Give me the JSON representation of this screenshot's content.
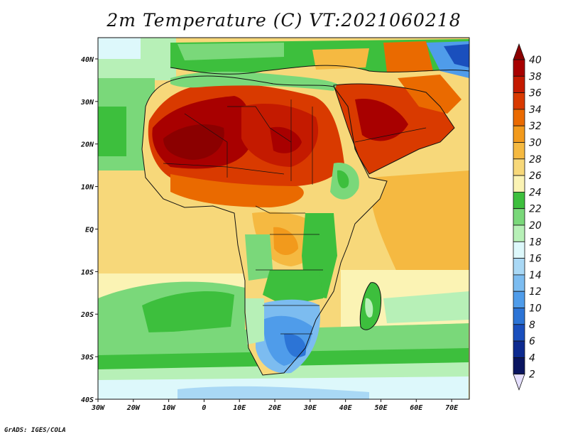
{
  "title": "2m Temperature (C) VT:2021060218",
  "credit": "GrADS: IGES/COLA",
  "map": {
    "variable": "2m Temperature",
    "units": "C",
    "valid_time": "2021060218",
    "lon_range": [
      -30,
      75
    ],
    "lat_range": [
      -40,
      45
    ],
    "lon_ticks": [
      "30W",
      "20W",
      "10W",
      "0",
      "10E",
      "20E",
      "30E",
      "40E",
      "50E",
      "60E",
      "70E"
    ],
    "lat_ticks": [
      "40N",
      "30N",
      "20N",
      "10N",
      "EQ",
      "10S",
      "20S",
      "30S",
      "40S"
    ]
  },
  "colorbar": {
    "labels": [
      "40",
      "38",
      "36",
      "34",
      "32",
      "30",
      "28",
      "26",
      "24",
      "22",
      "20",
      "18",
      "16",
      "14",
      "12",
      "10",
      "8",
      "6",
      "4",
      "2"
    ],
    "colors": [
      "#8b0000",
      "#a80000",
      "#c41a00",
      "#d93a00",
      "#ea6a00",
      "#f29a1c",
      "#f5b941",
      "#f7d87a",
      "#fbf3b4",
      "#3dbf3d",
      "#7ad87a",
      "#b7f0b7",
      "#ddf8fb",
      "#a9d8f5",
      "#7cbcf0",
      "#4f9cea",
      "#2c74d6",
      "#1a4fbd",
      "#0d2a8f",
      "#0a1560"
    ],
    "top_arrow_color": "#8b0000",
    "bottom_arrow_color": "#e6e0ff"
  }
}
